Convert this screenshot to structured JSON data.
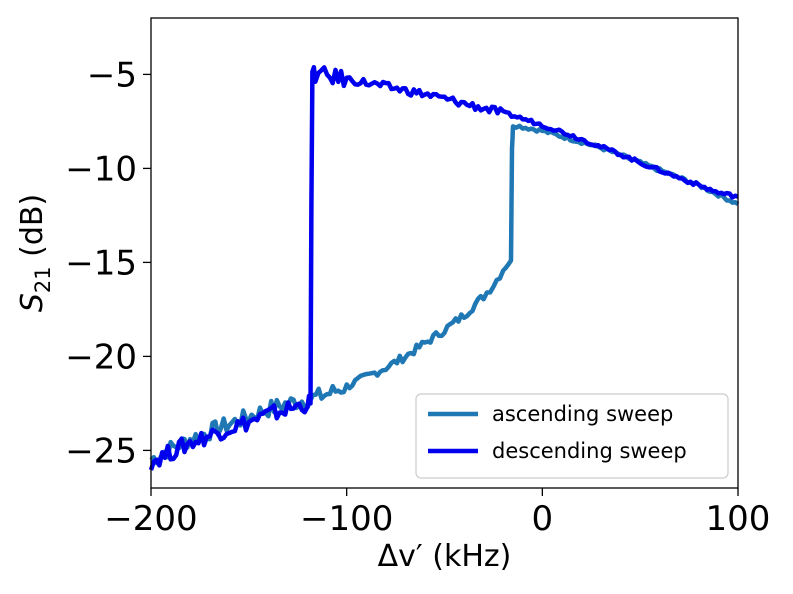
{
  "chart_data": {
    "type": "line",
    "title": "",
    "xlabel": "Δv′ (kHz)",
    "ylabel_main": "S",
    "ylabel_sub": "21",
    "ylabel_unit": " (dB)",
    "xlim": [
      -200,
      100
    ],
    "ylim": [
      -27,
      -2
    ],
    "xticks": [
      -200,
      -100,
      0,
      100
    ],
    "xtick_labels": [
      "−200",
      "−100",
      "0",
      "100"
    ],
    "yticks": [
      -5,
      -10,
      -15,
      -20,
      -25
    ],
    "ytick_labels": [
      "−5",
      "−10",
      "−15",
      "−20",
      "−25"
    ],
    "grid": false,
    "legend_position": "lower-right",
    "series": [
      {
        "name": "ascending sweep",
        "color": "#1f77b4",
        "x": [
          -200,
          -190,
          -180,
          -170,
          -160,
          -150,
          -140,
          -130,
          -120,
          -110,
          -100,
          -90,
          -80,
          -70,
          -60,
          -50,
          -40,
          -30,
          -25,
          -20,
          -16,
          -15.5,
          -15,
          -10,
          0,
          10,
          20,
          30,
          40,
          50,
          60,
          70,
          80,
          90,
          100
        ],
        "y": [
          -25.5,
          -24.9,
          -24.4,
          -24.0,
          -23.6,
          -23.2,
          -22.8,
          -22.5,
          -22.3,
          -22.0,
          -21.6,
          -21.1,
          -20.6,
          -20.0,
          -19.3,
          -18.6,
          -17.8,
          -16.8,
          -16.2,
          -15.4,
          -14.9,
          -9.0,
          -7.7,
          -7.8,
          -8.0,
          -8.3,
          -8.6,
          -8.9,
          -9.3,
          -9.7,
          -10.1,
          -10.5,
          -10.9,
          -11.4,
          -11.9
        ]
      },
      {
        "name": "descending sweep",
        "color": "#0000ee",
        "x": [
          -200,
          -190,
          -180,
          -170,
          -160,
          -150,
          -140,
          -130,
          -120,
          -118.5,
          -118,
          -117.5,
          -116,
          -110,
          -100,
          -90,
          -80,
          -70,
          -60,
          -50,
          -40,
          -30,
          -20,
          -10,
          0,
          10,
          20,
          30,
          40,
          50,
          60,
          70,
          80,
          90,
          100
        ],
        "y": [
          -25.6,
          -25.1,
          -24.6,
          -24.2,
          -23.8,
          -23.5,
          -23.1,
          -22.8,
          -22.5,
          -22.5,
          -12.0,
          -4.9,
          -5.0,
          -5.1,
          -5.25,
          -5.45,
          -5.65,
          -5.85,
          -6.05,
          -6.3,
          -6.55,
          -6.8,
          -7.05,
          -7.35,
          -7.7,
          -8.05,
          -8.45,
          -8.85,
          -9.25,
          -9.7,
          -10.1,
          -10.5,
          -10.9,
          -11.3,
          -11.5
        ]
      }
    ]
  }
}
